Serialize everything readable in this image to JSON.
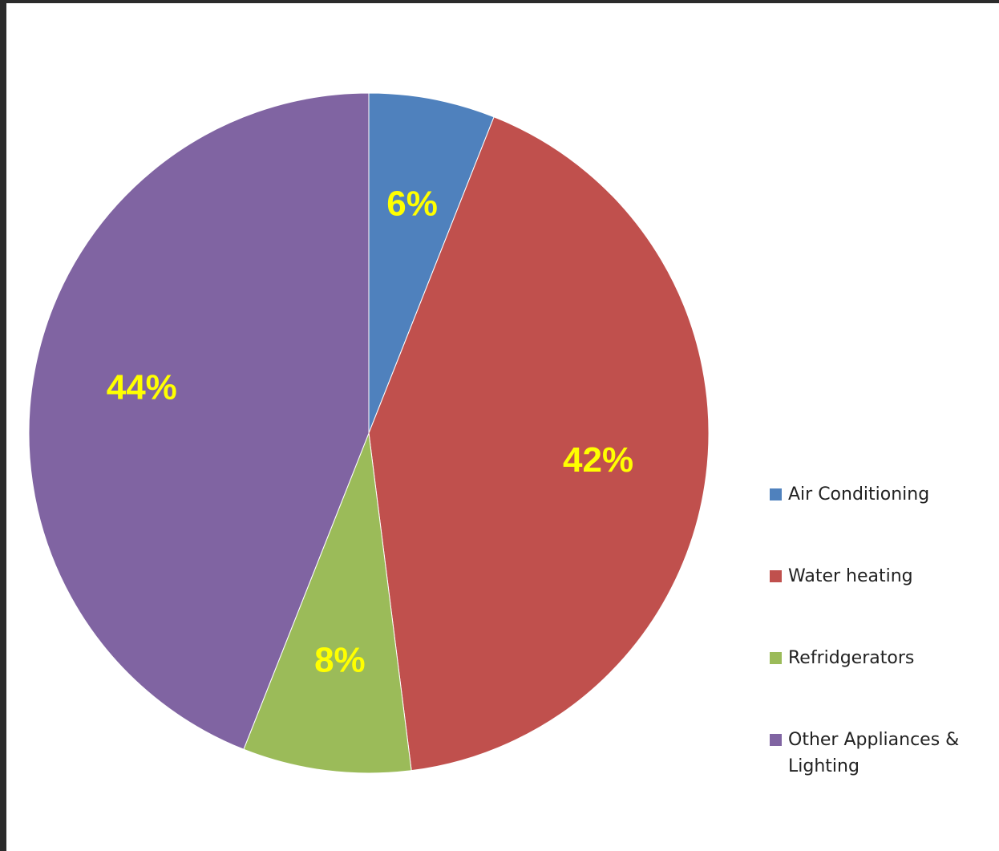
{
  "chart_data": {
    "type": "pie",
    "categories": [
      "Air Conditioning",
      "Water heating",
      "Refridgerators",
      "Other Appliances & Lighting"
    ],
    "values": [
      6,
      42,
      8,
      44
    ],
    "data_labels": [
      "6%",
      "42%",
      "8%",
      "44%"
    ],
    "colors": [
      "#4f81bd",
      "#c0504d",
      "#9bbb59",
      "#8064a2"
    ],
    "label_color": "#ffff00",
    "legend": "right",
    "title": ""
  }
}
